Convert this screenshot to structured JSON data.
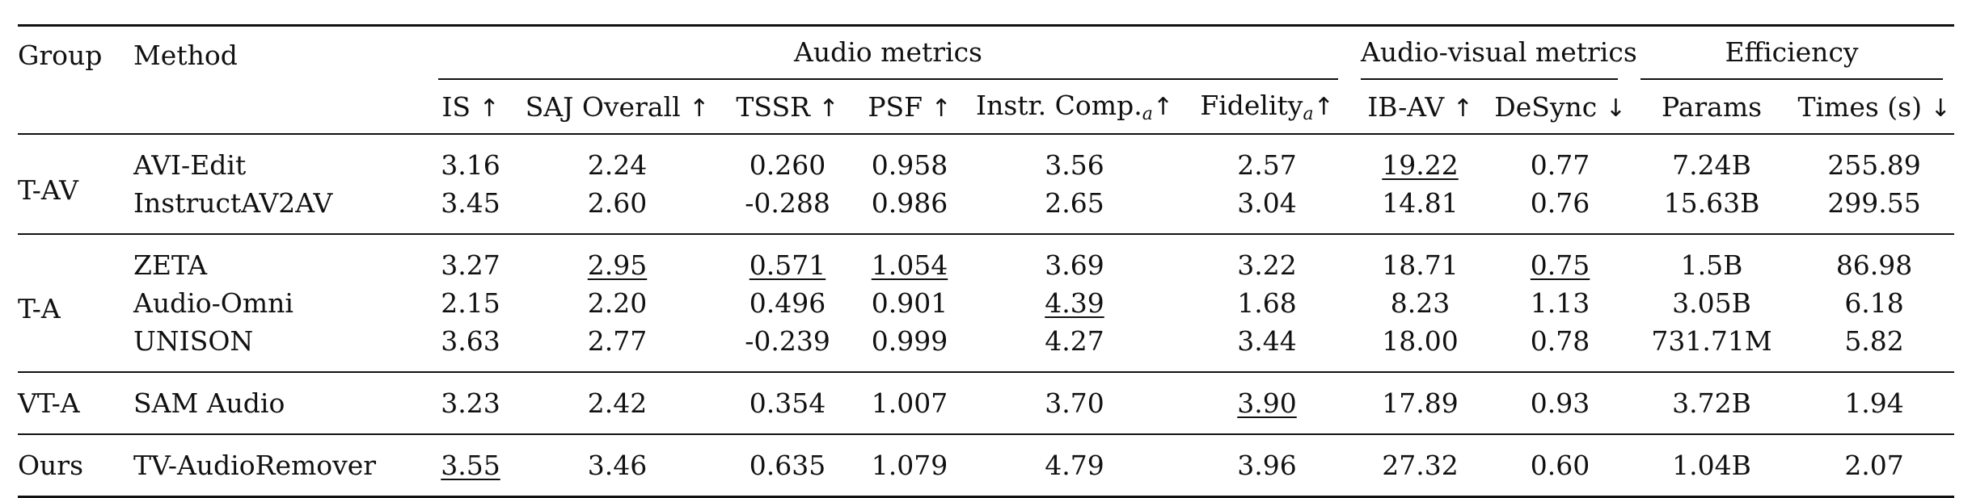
{
  "table": {
    "headers": {
      "group": "Group",
      "method": "Method",
      "audio_metrics": "Audio metrics",
      "av_metrics": "Audio-visual metrics",
      "efficiency": "Efficiency",
      "is": "IS",
      "saj": "SAJ Overall",
      "tssr": "TSSR",
      "psf": "PSF",
      "instr_comp": "Instr. Comp.",
      "instr_comp_sub": "a",
      "fidelity": "Fidelity",
      "fidelity_sub": "a",
      "ibav": "IB-AV",
      "desync": "DeSync",
      "params": "Params",
      "times": "Times (s)",
      "arrow_up": "↑",
      "arrow_down": "↓"
    },
    "groups": {
      "tav": "T-AV",
      "ta": "T-A",
      "vta": "VT-A",
      "ours": "Ours"
    },
    "rows": [
      {
        "method": "AVI-Edit",
        "is": "3.16",
        "saj": "2.24",
        "tssr": "0.260",
        "psf": "0.958",
        "instr": "3.56",
        "fid": "2.57",
        "ibav": "19.22",
        "desync": "0.77",
        "params": "7.24B",
        "times": "255.89"
      },
      {
        "method": "InstructAV2AV",
        "is": "3.45",
        "saj": "2.60",
        "tssr": "-0.288",
        "psf": "0.986",
        "instr": "2.65",
        "fid": "3.04",
        "ibav": "14.81",
        "desync": "0.76",
        "params": "15.63B",
        "times": "299.55"
      },
      {
        "method": "ZETA",
        "is": "3.27",
        "saj": "2.95",
        "tssr": "0.571",
        "psf": "1.054",
        "instr": "3.69",
        "fid": "3.22",
        "ibav": "18.71",
        "desync": "0.75",
        "params": "1.5B",
        "times": "86.98"
      },
      {
        "method": "Audio-Omni",
        "is": "2.15",
        "saj": "2.20",
        "tssr": "0.496",
        "psf": "0.901",
        "instr": "4.39",
        "fid": "1.68",
        "ibav": "8.23",
        "desync": "1.13",
        "params": "3.05B",
        "times": "6.18"
      },
      {
        "method": "UNISON",
        "is": "3.63",
        "saj": "2.77",
        "tssr": "-0.239",
        "psf": "0.999",
        "instr": "4.27",
        "fid": "3.44",
        "ibav": "18.00",
        "desync": "0.78",
        "params": "731.71M",
        "times": "5.82"
      },
      {
        "method": "SAM Audio",
        "is": "3.23",
        "saj": "2.42",
        "tssr": "0.354",
        "psf": "1.007",
        "instr": "3.70",
        "fid": "3.90",
        "ibav": "17.89",
        "desync": "0.93",
        "params": "3.72B",
        "times": "1.94"
      },
      {
        "method": "TV-AudioRemover",
        "is": "3.55",
        "saj": "3.46",
        "tssr": "0.635",
        "psf": "1.079",
        "instr": "4.79",
        "fid": "3.96",
        "ibav": "27.32",
        "desync": "0.60",
        "params": "1.04B",
        "times": "2.07"
      }
    ]
  }
}
